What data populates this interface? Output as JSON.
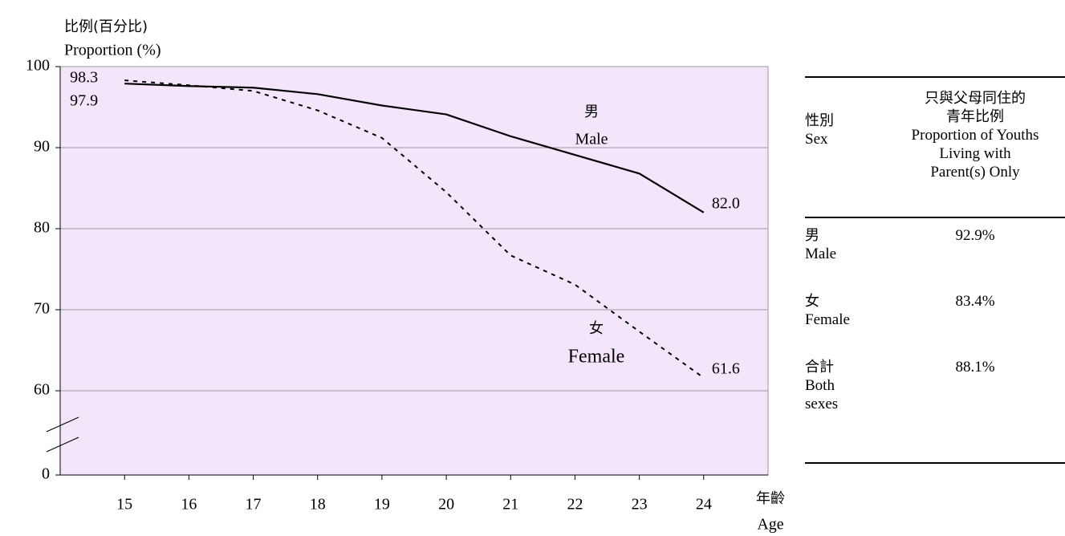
{
  "chart_data": {
    "type": "line",
    "y_title": [
      "比例(百分比)",
      "Proportion (%)"
    ],
    "x_title": [
      "年齡",
      "Age"
    ],
    "x": [
      15,
      16,
      17,
      18,
      19,
      20,
      21,
      22,
      23,
      24
    ],
    "xlim": [
      14,
      25
    ],
    "xticks": [
      15,
      16,
      17,
      18,
      19,
      20,
      21,
      22,
      23,
      24
    ],
    "ylim": [
      0,
      100
    ],
    "yticks": [
      0,
      60,
      70,
      80,
      90,
      100
    ],
    "ybreak": [
      0,
      60
    ],
    "grid": true,
    "background": "#f3e6fb",
    "series": [
      {
        "name": "Male",
        "name_zh": "男",
        "color": "#000000",
        "dash": false,
        "values": [
          97.9,
          97.6,
          97.4,
          96.6,
          95.2,
          94.1,
          91.4,
          89.1,
          86.8,
          82.0
        ],
        "value_labels": [
          "97.9",
          null,
          null,
          null,
          null,
          null,
          null,
          null,
          null,
          "82.0"
        ]
      },
      {
        "name": "Female",
        "name_zh": "女",
        "color": "#000000",
        "dash": true,
        "values": [
          98.3,
          97.7,
          97.0,
          94.6,
          91.2,
          84.5,
          76.7,
          73.1,
          67.3,
          61.6
        ],
        "value_labels": [
          "98.3",
          null,
          null,
          null,
          null,
          null,
          null,
          null,
          null,
          "61.6"
        ]
      }
    ]
  },
  "table": {
    "header": [
      [
        "性別",
        "Sex"
      ],
      [
        "只與父母同住的",
        "青年比例",
        "Proportion of Youths",
        "Living with",
        "Parent(s) Only"
      ]
    ],
    "rows": [
      [
        [
          "男",
          "Male"
        ],
        "92.9%"
      ],
      [
        [
          "女",
          "Female"
        ],
        "83.4%"
      ],
      [
        [
          "合計",
          "Both sexes"
        ],
        "88.1%"
      ]
    ]
  }
}
